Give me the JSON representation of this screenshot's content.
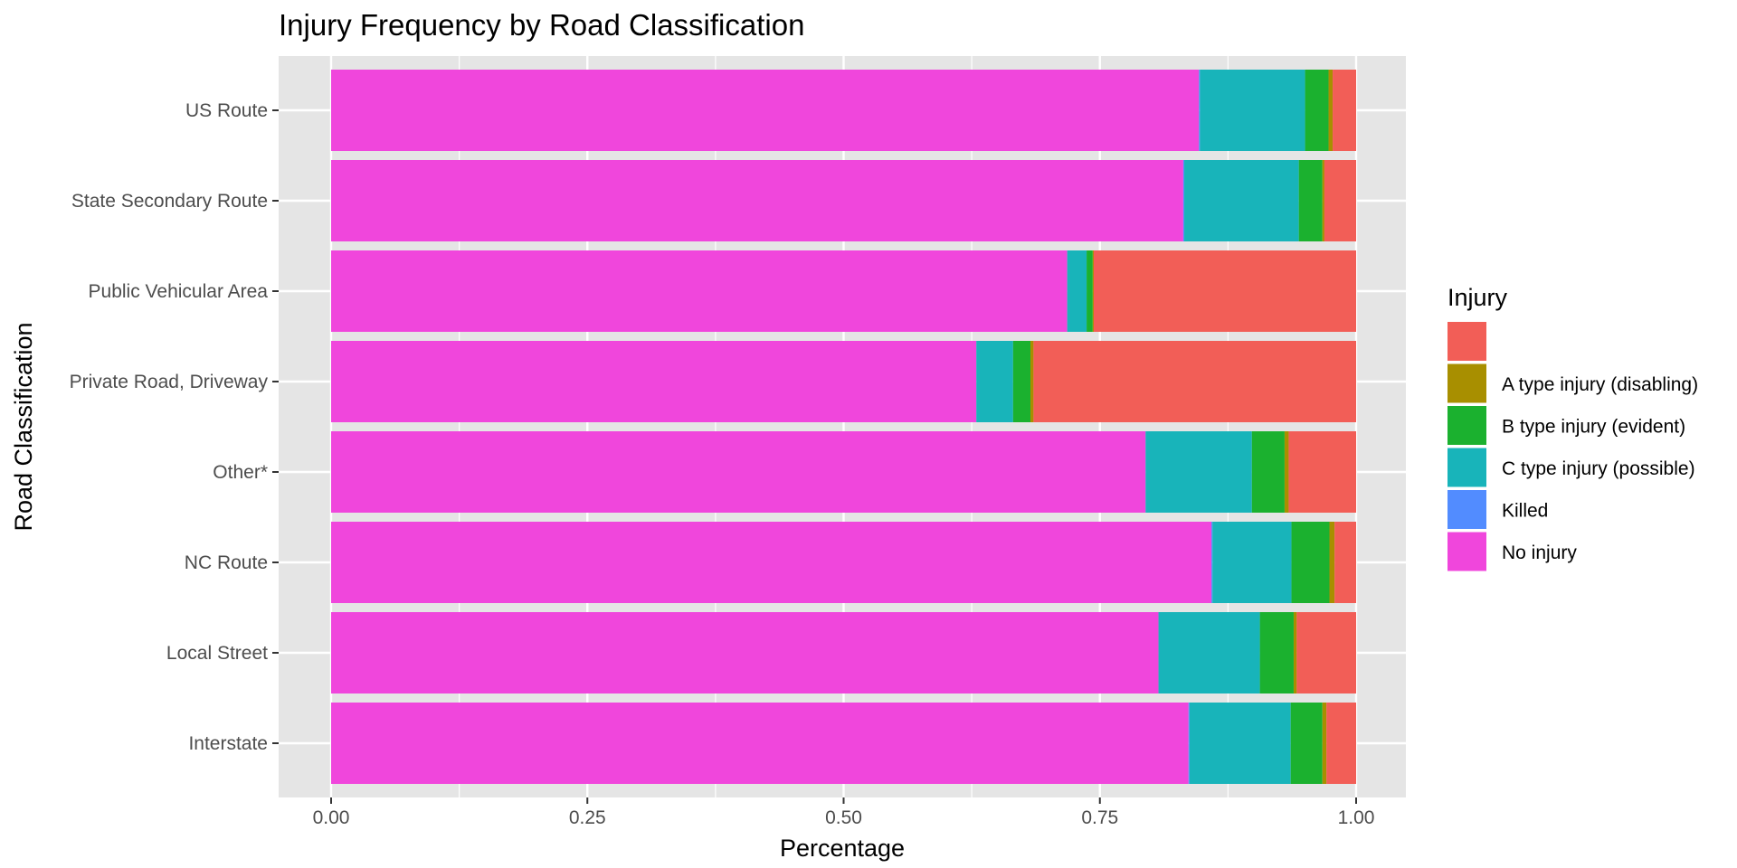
{
  "chart_data": {
    "type": "bar",
    "orientation": "horizontal",
    "stacked": true,
    "title": "Injury Frequency by Road Classification",
    "xlabel": "Percentage",
    "ylabel": "Road Classification",
    "xlim": [
      0,
      1
    ],
    "x_ticks": [
      "0.00",
      "0.25",
      "0.50",
      "0.75",
      "1.00"
    ],
    "x_tick_values": [
      0,
      0.25,
      0.5,
      0.75,
      1.0
    ],
    "grid": true,
    "legend_placement": "right",
    "legend_title": "Injury",
    "categories": [
      "US Route",
      "State Secondary Route",
      "Public Vehicular Area",
      "Private Road, Driveway",
      "Other*",
      "NC Route",
      "Local Street",
      "Interstate"
    ],
    "series": [
      {
        "name": "No injury",
        "color": "#F046DC",
        "values": [
          0.85,
          0.833,
          0.721,
          0.632,
          0.797,
          0.858,
          0.808,
          0.839
        ]
      },
      {
        "name": "Killed",
        "color": "#528CFF",
        "values": [
          0.001,
          0.001,
          0.0,
          0.0,
          0.0,
          0.001,
          0.0,
          0.001
        ]
      },
      {
        "name": "C type injury (possible)",
        "color": "#18B4BA",
        "values": [
          0.103,
          0.112,
          0.019,
          0.036,
          0.104,
          0.077,
          0.099,
          0.099
        ]
      },
      {
        "name": "B type injury (evident)",
        "color": "#1BB12F",
        "values": [
          0.023,
          0.023,
          0.006,
          0.017,
          0.032,
          0.037,
          0.033,
          0.031
        ]
      },
      {
        "name": "A type injury (disabling)",
        "color": "#A88F00",
        "values": [
          0.004,
          0.002,
          0.001,
          0.003,
          0.004,
          0.005,
          0.003,
          0.004
        ]
      },
      {
        "name": "",
        "color": "#F25E57",
        "values": [
          0.023,
          0.031,
          0.257,
          0.316,
          0.066,
          0.021,
          0.058,
          0.029
        ]
      }
    ],
    "legend_entries": [
      {
        "label": "",
        "color": "#F25E57"
      },
      {
        "label": "A type injury (disabling)",
        "color": "#A88F00"
      },
      {
        "label": "B type injury (evident)",
        "color": "#1BB12F"
      },
      {
        "label": "C type injury (possible)",
        "color": "#18B4BA"
      },
      {
        "label": "Killed",
        "color": "#528CFF"
      },
      {
        "label": "No injury",
        "color": "#F046DC"
      }
    ]
  },
  "colors": {
    "panel_background": "#E5E5E5",
    "grid_major": "#FFFFFF",
    "tick_text": "#4D4D4D"
  }
}
